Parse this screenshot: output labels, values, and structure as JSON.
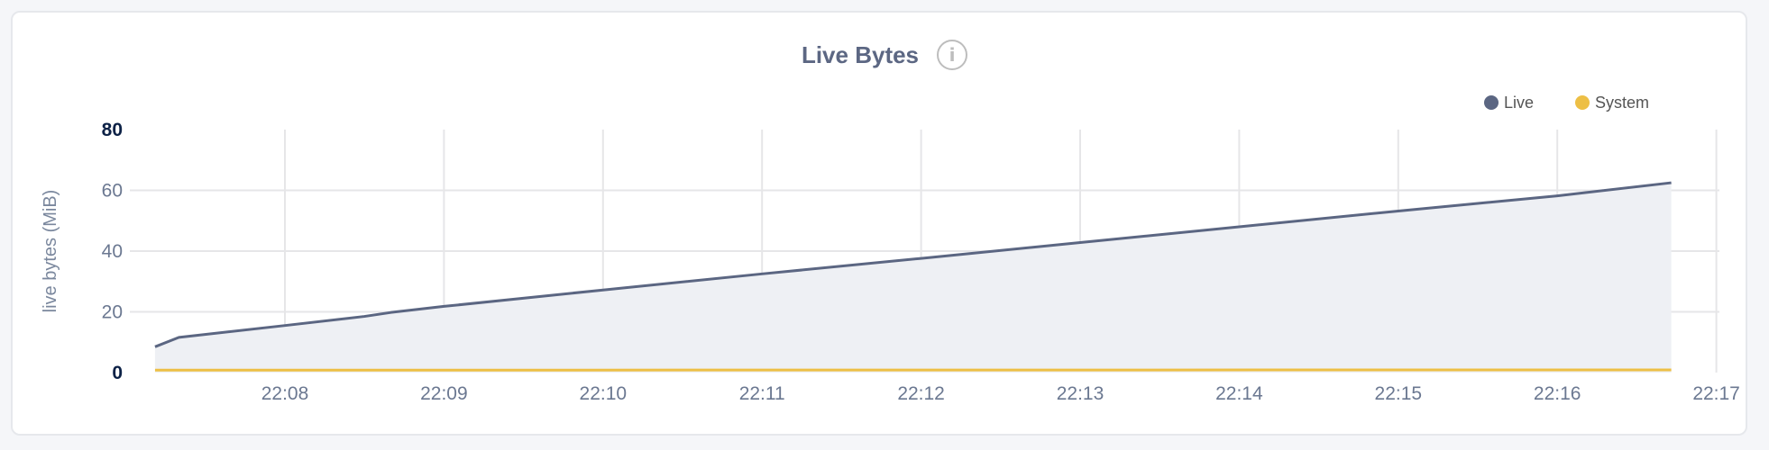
{
  "chart_data": {
    "type": "area",
    "title": "Live Bytes",
    "title_icon": "info-icon",
    "ylabel": "live bytes (MiB)",
    "xlabel": "",
    "ylim": [
      0,
      80
    ],
    "yticks": [
      "0",
      "20",
      "40",
      "60",
      "80"
    ],
    "xticks": [
      "22:08",
      "22:09",
      "22:10",
      "22:11",
      "22:12",
      "22:13",
      "22:14",
      "22:15",
      "22:16",
      "22:17"
    ],
    "grid": true,
    "legend_position": "top-right",
    "series": [
      {
        "name": "Live",
        "color": "#5b6682",
        "fill": "#eef0f4",
        "x": [
          "22:07:11",
          "22:07:20",
          "22:08:00",
          "22:08:30",
          "22:08:40",
          "22:09:00",
          "22:10:00",
          "22:11:00",
          "22:12:00",
          "22:13:00",
          "22:14:00",
          "22:15:00",
          "22:16:00",
          "22:16:43"
        ],
        "y": [
          8.5,
          11.6,
          15.5,
          18.5,
          19.8,
          21.8,
          27.2,
          32.5,
          37.6,
          42.8,
          48.0,
          53.2,
          58.2,
          62.5
        ]
      },
      {
        "name": "System",
        "color": "#edbf45",
        "x": [
          "22:07:11",
          "22:16:43"
        ],
        "y": [
          0.8,
          0.9
        ]
      }
    ]
  }
}
